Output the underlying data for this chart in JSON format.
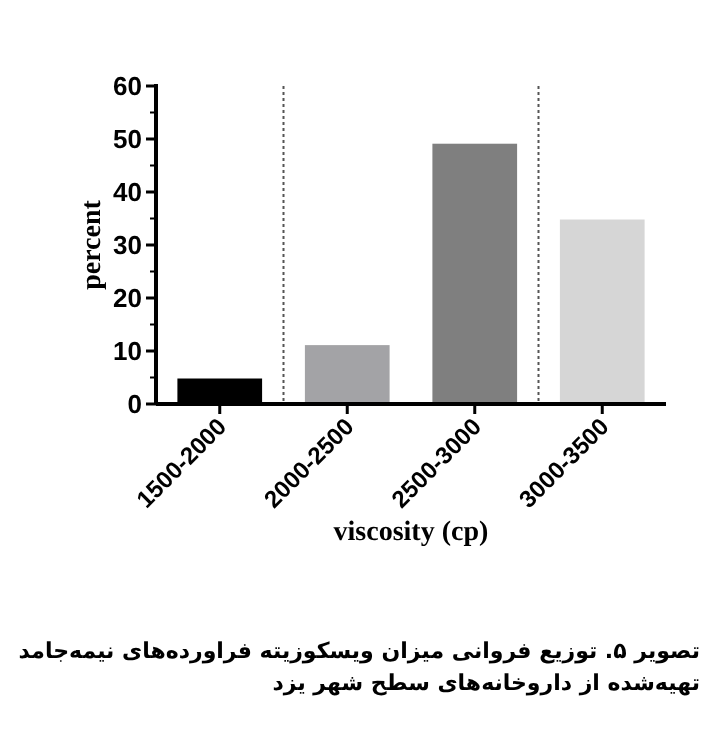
{
  "chart_data": {
    "type": "bar",
    "xlabel": "viscosity (cp)",
    "ylabel": "percent",
    "categories": [
      "1500-2000",
      "2000-2500",
      "2500-3000",
      "3000-3500"
    ],
    "values": [
      5,
      11.3,
      49.3,
      35
    ],
    "colors": [
      "#000000",
      "#a3a3a6",
      "#7f7f7f",
      "#d6d6d6"
    ],
    "ylim": [
      0,
      60
    ],
    "yticks": [
      0,
      10,
      20,
      30,
      40,
      50,
      60
    ],
    "annotations": [
      "تصویر ۵. توزیع فروانی میزان ویسکوزیته فراورده‌های نیمه‌جامد تهیه‌شده از داروخانه‌های سطح شهر یزد"
    ]
  }
}
